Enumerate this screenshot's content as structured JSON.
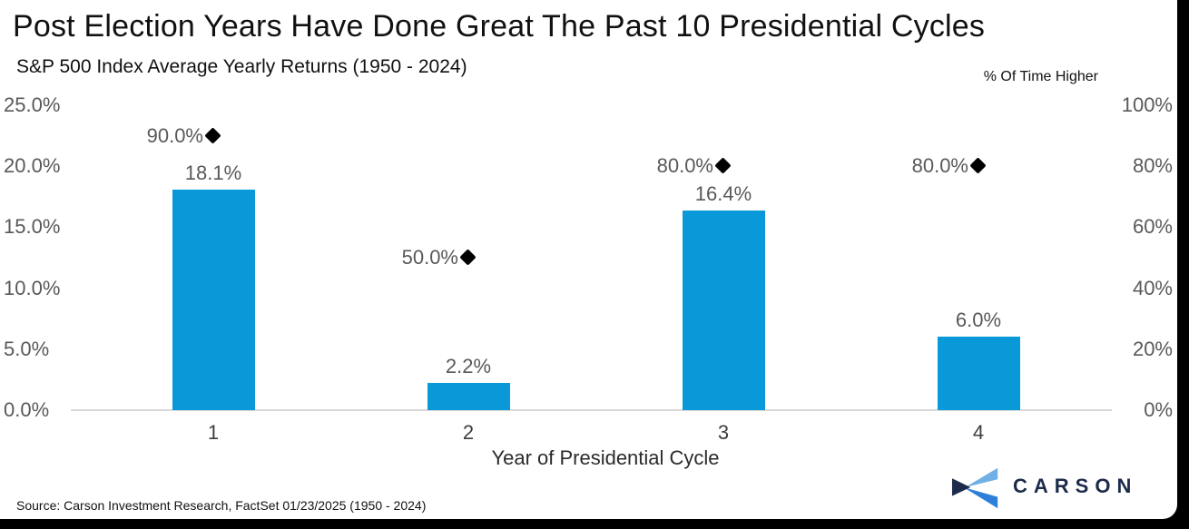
{
  "header": {
    "title": "Post Election Years Have Done Great The Past 10 Presidential Cycles",
    "subtitle": "S&P 500 Index Average Yearly Returns (1950 - 2024)",
    "right_axis_title": "% Of Time Higher"
  },
  "chart_data": {
    "type": "bar",
    "title": "Post Election Years Have Done Great The Past 10 Presidential Cycles",
    "subtitle": "S&P 500 Index Average Yearly Returns (1950 - 2024)",
    "xlabel": "Year of Presidential Cycle",
    "categories": [
      "1",
      "2",
      "3",
      "4"
    ],
    "series": [
      {
        "name": "S&P 500 Index Average Yearly Returns",
        "type": "bar",
        "axis": "left",
        "values": [
          18.1,
          2.2,
          16.4,
          6.0
        ],
        "labels": [
          "18.1%",
          "2.2%",
          "16.4%",
          "6.0%"
        ]
      },
      {
        "name": "% Of Time Higher",
        "type": "scatter",
        "marker": "diamond",
        "axis": "right",
        "values": [
          90.0,
          50.0,
          80.0,
          80.0
        ],
        "labels": [
          "90.0%",
          "50.0%",
          "80.0%",
          "80.0%"
        ]
      }
    ],
    "left_axis": {
      "min": 0,
      "max": 25,
      "ticks": [
        "25.0%",
        "20.0%",
        "15.0%",
        "10.0%",
        "5.0%",
        "0.0%"
      ]
    },
    "right_axis": {
      "min": 0,
      "max": 100,
      "title": "% Of Time Higher",
      "ticks": [
        "100%",
        "80%",
        "60%",
        "40%",
        "20%",
        "0%"
      ]
    },
    "legend": "none",
    "grid": "baseline-only"
  },
  "footer": {
    "source": "Source: Carson Investment Research, FactSet 01/23/2025 (1950 - 2024)",
    "logo_text": "CARSON"
  },
  "colors": {
    "bar": "#0999D8",
    "diamond": "#000000",
    "value_label": "#595959",
    "axis_label": "#595959",
    "baseline": "#D9D9D9",
    "logo_navy": "#1C2B4A",
    "logo_light_blue": "#71B0E6",
    "logo_blue": "#2E7FD9",
    "frame": "#000000"
  }
}
